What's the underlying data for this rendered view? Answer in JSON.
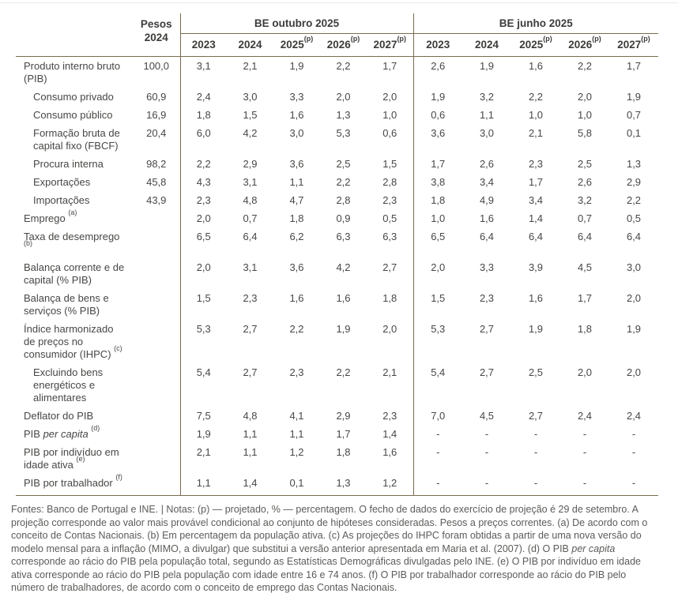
{
  "colors": {
    "rule": "#7b6b50",
    "header_text": "#3d3c3a",
    "body_text": "#484745",
    "footer_text": "#5c5b59"
  },
  "table": {
    "pesos_header": "Pesos 2024",
    "groups": [
      {
        "label": "BE outubro 2025"
      },
      {
        "label": "BE junho 2025"
      }
    ],
    "years": [
      {
        "label": "2023",
        "sup": ""
      },
      {
        "label": "2024",
        "sup": ""
      },
      {
        "label": "2025",
        "sup": "(p)"
      },
      {
        "label": "2026",
        "sup": "(p)"
      },
      {
        "label": "2027",
        "sup": "(p)"
      }
    ],
    "rows": [
      {
        "label": "Produto interno bruto (PIB)",
        "indent": false,
        "pesos": "100,0",
        "out": [
          "3,1",
          "2,1",
          "1,9",
          "2,2",
          "1,7"
        ],
        "jun": [
          "2,6",
          "1,9",
          "1,6",
          "2,2",
          "1,7"
        ]
      },
      {
        "label": "Consumo privado",
        "indent": true,
        "pesos": "60,9",
        "out": [
          "2,4",
          "3,0",
          "3,3",
          "2,0",
          "2,0"
        ],
        "jun": [
          "1,9",
          "3,2",
          "2,2",
          "2,0",
          "1,9"
        ]
      },
      {
        "label": "Consumo público",
        "indent": true,
        "pesos": "16,9",
        "out": [
          "1,8",
          "1,5",
          "1,6",
          "1,3",
          "1,0"
        ],
        "jun": [
          "0,6",
          "1,1",
          "1,0",
          "1,0",
          "0,7"
        ]
      },
      {
        "label": "Formação bruta de capital fixo (FBCF)",
        "indent": true,
        "pesos": "20,4",
        "out": [
          "6,0",
          "4,2",
          "3,0",
          "5,3",
          "0,6"
        ],
        "jun": [
          "3,6",
          "3,0",
          "2,1",
          "5,8",
          "0,1"
        ]
      },
      {
        "label": "Procura interna",
        "indent": true,
        "pesos": "98,2",
        "out": [
          "2,2",
          "2,9",
          "3,6",
          "2,5",
          "1,5"
        ],
        "jun": [
          "1,7",
          "2,6",
          "2,3",
          "2,5",
          "1,3"
        ]
      },
      {
        "label": "Exportações",
        "indent": true,
        "pesos": "45,8",
        "out": [
          "4,3",
          "3,1",
          "1,1",
          "2,2",
          "2,8"
        ],
        "jun": [
          "3,8",
          "3,4",
          "1,7",
          "2,6",
          "2,9"
        ]
      },
      {
        "label": "Importações",
        "indent": true,
        "pesos": "43,9",
        "out": [
          "2,3",
          "4,8",
          "4,7",
          "2,8",
          "2,3"
        ],
        "jun": [
          "1,8",
          "4,9",
          "3,4",
          "3,2",
          "2,2"
        ]
      },
      {
        "label": "Emprego",
        "sup": "(a)",
        "indent": false,
        "pesos": "",
        "out": [
          "2,0",
          "0,7",
          "1,8",
          "0,9",
          "0,5"
        ],
        "jun": [
          "1,0",
          "1,6",
          "1,4",
          "0,7",
          "0,5"
        ]
      },
      {
        "label": "Taxa de desemprego",
        "sup": "(b)",
        "indent": false,
        "pesos": "",
        "out": [
          "6,5",
          "6,4",
          "6,2",
          "6,3",
          "6,3"
        ],
        "jun": [
          "6,5",
          "6,4",
          "6,4",
          "6,4",
          "6,4"
        ]
      },
      {
        "label": "Balança corrente e de capital (% PIB)",
        "indent": false,
        "pesos": "",
        "out": [
          "2,0",
          "3,1",
          "3,6",
          "4,2",
          "2,7"
        ],
        "jun": [
          "2,0",
          "3,3",
          "3,9",
          "4,5",
          "3,0"
        ]
      },
      {
        "label": "Balança de bens e serviços (% PIB)",
        "indent": false,
        "pesos": "",
        "out": [
          "1,5",
          "2,3",
          "1,6",
          "1,6",
          "1,8"
        ],
        "jun": [
          "1,5",
          "2,3",
          "1,6",
          "1,7",
          "2,0"
        ]
      },
      {
        "label": "Índice harmonizado de preços no consumidor (IHPC)",
        "sup": "(c)",
        "indent": false,
        "pesos": "",
        "out": [
          "5,3",
          "2,7",
          "2,2",
          "1,9",
          "2,0"
        ],
        "jun": [
          "5,3",
          "2,7",
          "1,9",
          "1,8",
          "1,9"
        ]
      },
      {
        "label": "Excluindo bens energéticos e alimentares",
        "indent": true,
        "pesos": "",
        "out": [
          "5,4",
          "2,7",
          "2,3",
          "2,2",
          "2,1"
        ],
        "jun": [
          "5,4",
          "2,7",
          "2,5",
          "2,0",
          "2,0"
        ]
      },
      {
        "label": "Deflator do PIB",
        "indent": false,
        "pesos": "",
        "out": [
          "7,5",
          "4,8",
          "4,1",
          "2,9",
          "2,3"
        ],
        "jun": [
          "7,0",
          "4,5",
          "2,7",
          "2,4",
          "2,4"
        ]
      },
      {
        "label": "PIB per capita",
        "italic": "per capita",
        "sup": "(d)",
        "indent": false,
        "pesos": "",
        "out": [
          "1,9",
          "1,1",
          "1,1",
          "1,7",
          "1,4"
        ],
        "jun": [
          "-",
          "-",
          "-",
          "-",
          "-"
        ]
      },
      {
        "label": "PIB por indivíduo em idade ativa",
        "sup": "(e)",
        "indent": false,
        "pesos": "",
        "out": [
          "2,1",
          "1,1",
          "1,2",
          "1,8",
          "1,6"
        ],
        "jun": [
          "-",
          "-",
          "-",
          "-",
          "-"
        ]
      },
      {
        "label": "PIB por trabalhador",
        "sup": "(f)",
        "indent": false,
        "pesos": "",
        "out": [
          "1,1",
          "1,4",
          "0,1",
          "1,3",
          "1,2"
        ],
        "jun": [
          "-",
          "-",
          "-",
          "-",
          "-"
        ]
      }
    ]
  },
  "footer": {
    "segments": [
      {
        "text": "Fontes: Banco de Portugal e INE. | Notas: (p) — projetado, % — percentagem. O fecho de dados do exercício de projeção é 29 de setembro. A projeção corresponde ao valor mais provável condicional ao conjunto de hipóteses consideradas. Pesos a preços correntes. (a) De acordo com o conceito de Contas Nacionais. (b) Em percentagem da população ativa. (c) As projeções do IHPC foram obtidas a partir de uma nova versão do modelo mensal para a inflação (MIMO, a divulgar) que substitui a versão anterior apresentada em Maria et al. (2007). (d) O PIB ",
        "italic": false
      },
      {
        "text": "per capita",
        "italic": true
      },
      {
        "text": " corresponde ao rácio do PIB pela população total, segundo as Estatísticas Demográficas divulgadas pelo INE. (e) O PIB por indivíduo em idade ativa corresponde ao rácio do PIB pela população com idade entre 16 e 74 anos. (f) O PIB por trabalhador corresponde ao rácio do PIB pelo número de trabalhadores, de acordo com o conceito de emprego das Contas Nacionais.",
        "italic": false
      }
    ]
  }
}
